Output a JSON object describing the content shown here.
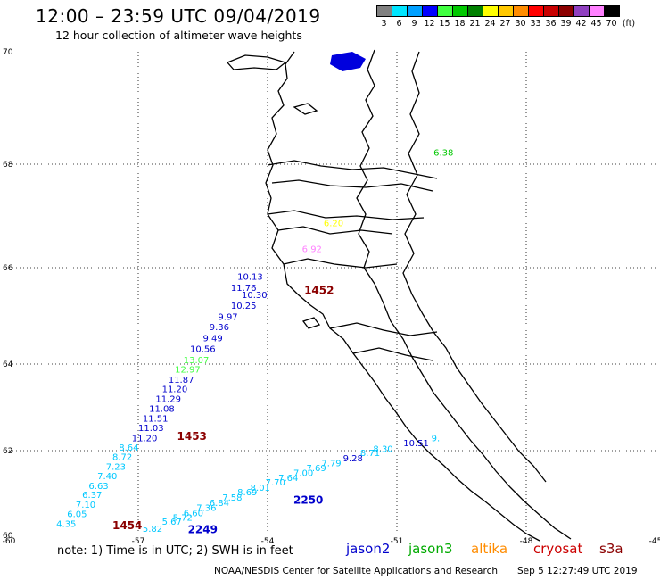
{
  "title": "12:00 – 23:59 UTC 09/04/2019",
  "subtitle": "12 hour collection of altimeter wave heights",
  "colorbar": {
    "unit": "(ft)",
    "colors": [
      "#808080",
      "#00e5ff",
      "#00a0ff",
      "#0000ff",
      "#40ff40",
      "#00c800",
      "#008000",
      "#ffff00",
      "#ffc800",
      "#ff8c00",
      "#ff0000",
      "#c80000",
      "#8b0000",
      "#9040c0",
      "#ff80ff",
      "#000000"
    ],
    "labels": [
      "3",
      "6",
      "9",
      "12",
      "15",
      "18",
      "21",
      "24",
      "27",
      "30",
      "33",
      "36",
      "39",
      "42",
      "45",
      "70"
    ]
  },
  "axes": {
    "x_ticks": [
      {
        "v": -60,
        "l": "-60"
      },
      {
        "v": -57,
        "l": "-57"
      },
      {
        "v": -54,
        "l": "-54"
      },
      {
        "v": -51,
        "l": "-51"
      },
      {
        "v": -48,
        "l": "-48"
      },
      {
        "v": -45,
        "l": "-45"
      }
    ],
    "y_ticks": [
      {
        "v": 60,
        "l": "60"
      },
      {
        "v": 62,
        "l": "62"
      },
      {
        "v": 64,
        "l": "64"
      },
      {
        "v": 66,
        "l": "66"
      },
      {
        "v": 68,
        "l": "68"
      },
      {
        "v": 70,
        "l": "70"
      }
    ]
  },
  "passes": [
    {
      "label": "1454",
      "color": "#8b0000",
      "lon": -57.6,
      "lat": 60.15
    },
    {
      "label": "1453",
      "color": "#8b0000",
      "lon": -56.1,
      "lat": 62.25
    },
    {
      "label": "1452",
      "color": "#8b0000",
      "lon": -53.15,
      "lat": 65.45
    },
    {
      "label": "2249",
      "color": "#0000cc",
      "lon": -55.85,
      "lat": 60.05
    },
    {
      "label": "2250",
      "color": "#0000cc",
      "lon": -53.4,
      "lat": 60.75
    }
  ],
  "wave_heights": [
    {
      "v": "4.35",
      "c": "#00c8ff",
      "lon": -58.9,
      "lat": 60.2
    },
    {
      "v": "6.05",
      "c": "#00c8ff",
      "lon": -58.65,
      "lat": 60.43
    },
    {
      "v": "7.10",
      "c": "#00c8ff",
      "lon": -58.45,
      "lat": 60.65
    },
    {
      "v": "6.37",
      "c": "#00c8ff",
      "lon": -58.3,
      "lat": 60.88
    },
    {
      "v": "6.63",
      "c": "#00c8ff",
      "lon": -58.15,
      "lat": 61.1
    },
    {
      "v": "7.40",
      "c": "#00c8ff",
      "lon": -57.95,
      "lat": 61.33
    },
    {
      "v": "7.23",
      "c": "#00c8ff",
      "lon": -57.75,
      "lat": 61.55
    },
    {
      "v": "8.72",
      "c": "#00c8ff",
      "lon": -57.6,
      "lat": 61.78
    },
    {
      "v": "8.64",
      "c": "#00c8ff",
      "lon": -57.45,
      "lat": 62.0
    },
    {
      "v": "11.20",
      "c": "#0000cc",
      "lon": -57.15,
      "lat": 62.22
    },
    {
      "v": "11.03",
      "c": "#0000cc",
      "lon": -57.0,
      "lat": 62.45
    },
    {
      "v": "11.51",
      "c": "#0000cc",
      "lon": -56.9,
      "lat": 62.67
    },
    {
      "v": "11.08",
      "c": "#0000cc",
      "lon": -56.75,
      "lat": 62.9
    },
    {
      "v": "11.29",
      "c": "#0000cc",
      "lon": -56.6,
      "lat": 63.12
    },
    {
      "v": "11.20",
      "c": "#0000cc",
      "lon": -56.45,
      "lat": 63.35
    },
    {
      "v": "11.87",
      "c": "#0000cc",
      "lon": -56.3,
      "lat": 63.57
    },
    {
      "v": "12.97",
      "c": "#40ff40",
      "lon": -56.15,
      "lat": 63.8
    },
    {
      "v": "13.07",
      "c": "#40ff40",
      "lon": -55.95,
      "lat": 64.02
    },
    {
      "v": "10.56",
      "c": "#0000cc",
      "lon": -55.8,
      "lat": 64.25
    },
    {
      "v": "9.49",
      "c": "#0000cc",
      "lon": -55.5,
      "lat": 64.47
    },
    {
      "v": "9.36",
      "c": "#0000cc",
      "lon": -55.35,
      "lat": 64.7
    },
    {
      "v": "9.97",
      "c": "#0000cc",
      "lon": -55.15,
      "lat": 64.92
    },
    {
      "v": "10.25",
      "c": "#0000cc",
      "lon": -54.85,
      "lat": 65.15
    },
    {
      "v": "10.30",
      "c": "#0000cc",
      "lon": -54.6,
      "lat": 65.37
    },
    {
      "v": "11.76",
      "c": "#0000cc",
      "lon": -54.85,
      "lat": 65.52
    },
    {
      "v": "10.13",
      "c": "#0000cc",
      "lon": -54.7,
      "lat": 65.75
    },
    {
      "v": "6.92",
      "c": "#ff80ff",
      "lon": -53.2,
      "lat": 66.3
    },
    {
      "v": "6.20",
      "c": "#ffff00",
      "lon": -52.7,
      "lat": 66.8
    },
    {
      "v": "6.38",
      "c": "#00c800",
      "lon": -50.15,
      "lat": 68.15
    },
    {
      "v": "5.82",
      "c": "#00c8ff",
      "lon": -56.9,
      "lat": 60.08
    },
    {
      "v": "5.67",
      "c": "#00c8ff",
      "lon": -56.45,
      "lat": 60.25
    },
    {
      "v": "5.72",
      "c": "#00c8ff",
      "lon": -56.2,
      "lat": 60.35
    },
    {
      "v": "6.60",
      "c": "#00c8ff",
      "lon": -55.95,
      "lat": 60.45
    },
    {
      "v": "7.36",
      "c": "#00c8ff",
      "lon": -55.65,
      "lat": 60.58
    },
    {
      "v": "6.84",
      "c": "#00c8ff",
      "lon": -55.35,
      "lat": 60.7
    },
    {
      "v": "7.58",
      "c": "#00c8ff",
      "lon": -55.05,
      "lat": 60.82
    },
    {
      "v": "8.69",
      "c": "#00c8ff",
      "lon": -54.7,
      "lat": 60.95
    },
    {
      "v": "8.01",
      "c": "#00c8ff",
      "lon": -54.4,
      "lat": 61.05
    },
    {
      "v": "7.70",
      "c": "#00c8ff",
      "lon": -54.05,
      "lat": 61.18
    },
    {
      "v": "7.64",
      "c": "#00c8ff",
      "lon": -53.75,
      "lat": 61.28
    },
    {
      "v": "7.00",
      "c": "#00c8ff",
      "lon": -53.4,
      "lat": 61.4
    },
    {
      "v": "7.69",
      "c": "#00c8ff",
      "lon": -53.1,
      "lat": 61.52
    },
    {
      "v": "7.79",
      "c": "#00c8ff",
      "lon": -52.75,
      "lat": 61.63
    },
    {
      "v": "9.28",
      "c": "#0000cc",
      "lon": -52.25,
      "lat": 61.75
    },
    {
      "v": "8.71",
      "c": "#00c8ff",
      "lon": -51.85,
      "lat": 61.87
    },
    {
      "v": "8.30",
      "c": "#00c8ff",
      "lon": -51.55,
      "lat": 61.97
    },
    {
      "v": "10.51",
      "c": "#0000cc",
      "lon": -50.85,
      "lat": 62.1
    },
    {
      "v": "9.",
      "c": "#00c8ff",
      "lon": -50.2,
      "lat": 62.22
    }
  ],
  "note": "note:  1) Time is in UTC; 2) SWH is in feet",
  "legend": [
    {
      "label": "jason2",
      "color": "#0000cc"
    },
    {
      "label": "jason3",
      "color": "#00aa00"
    },
    {
      "label": "altika",
      "color": "#ff8c00"
    },
    {
      "label": "cryosat",
      "color": "#cc0000"
    },
    {
      "label": "s3a",
      "color": "#8b0000"
    }
  ],
  "footer": "NOAA/NESDIS Center for Satellite Applications and Research",
  "footer_time": "Sep  5 12:27:49 UTC 2019"
}
